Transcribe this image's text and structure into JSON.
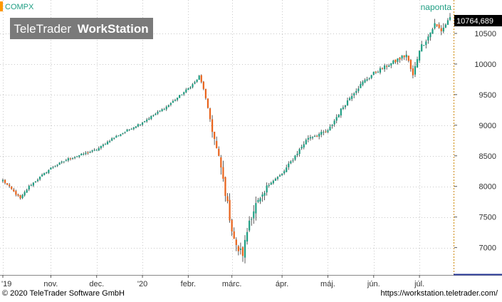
{
  "header": {
    "symbol": "COMPX",
    "period": "naponta",
    "watermark_regular": "TeleTrader",
    "watermark_bold": "WorkStation",
    "last_value": "10764,689"
  },
  "footer": {
    "copyright": "© 2020 TeleTrader Software GmbH",
    "url": "https://workstation.teletrader.com/"
  },
  "colors": {
    "up": "#1f9e83",
    "down": "#e8631c",
    "wick": "#333333",
    "symbol_text": "#1f9e83",
    "accent_bar": "#ff9900",
    "last_box": "#000000",
    "watermark_bg": "#7a7a7a",
    "axis_blue": "#2a3a9a"
  },
  "chart_data": {
    "type": "candlestick",
    "ylim": [
      6600,
      11000
    ],
    "y_ticks": [
      7000,
      7500,
      8000,
      8500,
      9000,
      9500,
      10000,
      10500
    ],
    "y_tick_labels": [
      "7000",
      "7500",
      "8000",
      "8500",
      "9000",
      "9500",
      "10000",
      "10500"
    ],
    "x_tick_labels": [
      "'19",
      "nov.",
      "dec.",
      "'20",
      "febr.",
      "márc.",
      "ápr.",
      "máj.",
      "jún.",
      "júl."
    ],
    "x_tick_positions": [
      0,
      22,
      43,
      64,
      85,
      105,
      128,
      149,
      170,
      191
    ],
    "n_sessions": 206,
    "trend": [
      [
        0,
        8100
      ],
      [
        8,
        7800
      ],
      [
        12,
        8000
      ],
      [
        22,
        8300
      ],
      [
        30,
        8450
      ],
      [
        43,
        8600
      ],
      [
        50,
        8780
      ],
      [
        64,
        9050
      ],
      [
        75,
        9300
      ],
      [
        85,
        9600
      ],
      [
        88,
        9700
      ],
      [
        90,
        9800
      ],
      [
        92,
        9600
      ],
      [
        95,
        9100
      ],
      [
        98,
        8600
      ],
      [
        100,
        8300
      ],
      [
        103,
        7700
      ],
      [
        105,
        7300
      ],
      [
        107,
        7000
      ],
      [
        110,
        6900
      ],
      [
        113,
        7450
      ],
      [
        116,
        7700
      ],
      [
        119,
        7800
      ],
      [
        122,
        8050
      ],
      [
        128,
        8200
      ],
      [
        134,
        8500
      ],
      [
        140,
        8800
      ],
      [
        149,
        8900
      ],
      [
        155,
        9250
      ],
      [
        160,
        9500
      ],
      [
        165,
        9700
      ],
      [
        170,
        9850
      ],
      [
        175,
        9950
      ],
      [
        180,
        10050
      ],
      [
        185,
        10150
      ],
      [
        188,
        9800
      ],
      [
        191,
        10250
      ],
      [
        195,
        10450
      ],
      [
        198,
        10650
      ],
      [
        201,
        10550
      ],
      [
        203,
        10650
      ],
      [
        205,
        10765
      ]
    ]
  }
}
